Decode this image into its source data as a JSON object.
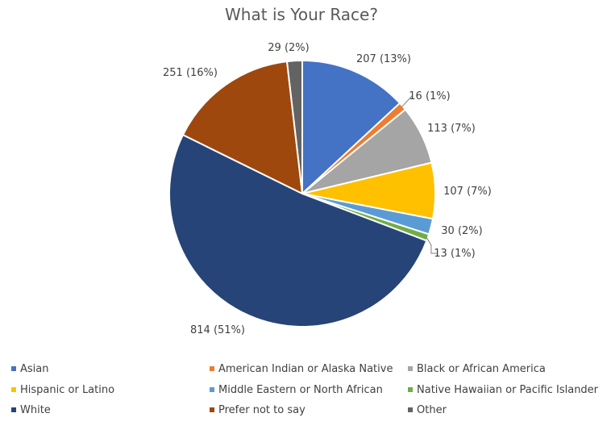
{
  "chart_data": {
    "type": "pie",
    "title": "What is Your Race?",
    "categories": [
      "Asian",
      "American Indian or Alaska Native",
      "Black or African America",
      "Hispanic or Latino",
      "Middle Eastern or North African",
      "Native Hawaiian or Pacific Islander",
      "White",
      "Prefer not to say",
      "Other"
    ],
    "values": [
      207,
      16,
      113,
      107,
      30,
      13,
      814,
      251,
      29
    ],
    "data_labels": [
      "207 (13%)",
      "16 (1%)",
      "113 (7%)",
      "107 (7%)",
      "30 (2%)",
      "13 (1%)",
      "814 (51%)",
      "251 (16%)",
      "29 (2%)"
    ],
    "colors": [
      "#4472C4",
      "#ED7D31",
      "#A5A5A5",
      "#FFC000",
      "#5B9BD5",
      "#70AD47",
      "#264478",
      "#9E480E",
      "#636363"
    ],
    "legend_position": "bottom",
    "start_angle": "12 o'clock, clockwise"
  }
}
